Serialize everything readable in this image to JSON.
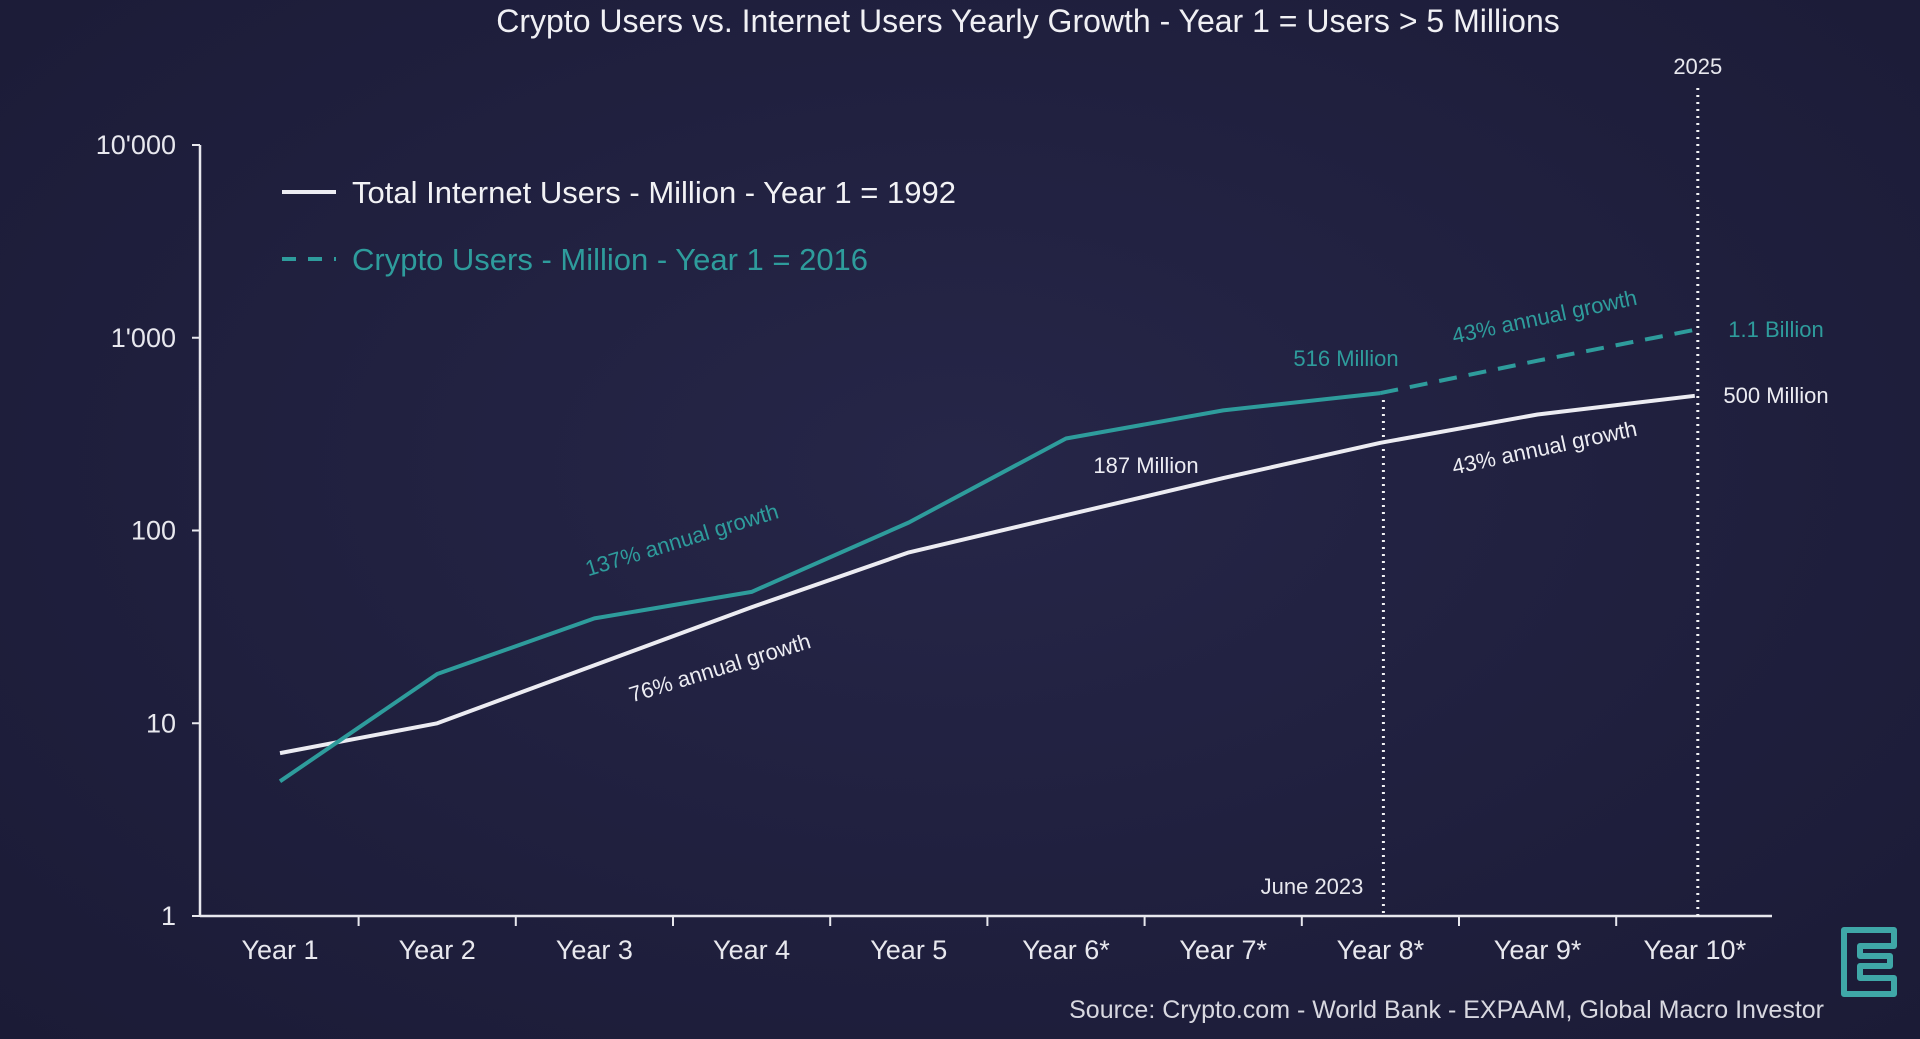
{
  "chart_data": {
    "type": "line",
    "title": "Crypto Users vs. Internet Users Yearly Growth - Year 1 = Users > 5 Millions",
    "y_scale": "log",
    "ylim": [
      1,
      10000
    ],
    "y_ticks": [
      "1",
      "10",
      "100",
      "1'000",
      "10'000"
    ],
    "categories": [
      "Year 1",
      "Year 2",
      "Year 3",
      "Year 4",
      "Year 5",
      "Year 6*",
      "Year 7*",
      "Year 8*",
      "Year 9*",
      "Year 10*"
    ],
    "series": [
      {
        "name": "Total Internet Users - Million - Year 1 = 1992",
        "color": "#ececf2",
        "style": "solid",
        "values": [
          7,
          10,
          20,
          40,
          77,
          120,
          187,
          285,
          400,
          500
        ]
      },
      {
        "name": "Crypto Users - Million - Year 1 = 2016",
        "color": "#2e9c9c",
        "style": "solid then dashed after Year 8*",
        "values": [
          5,
          18,
          35,
          48,
          110,
          300,
          420,
          516,
          760,
          1100
        ]
      }
    ],
    "vlines": [
      {
        "category_index": 7,
        "label": "June 2023",
        "label_position": "bottom"
      },
      {
        "category_index": 9,
        "label": "2025",
        "label_position": "top"
      }
    ],
    "annotations": [
      {
        "text": "137% annual growth",
        "color": "#2e9c9c",
        "near": "Year 3 - Year 4",
        "series": "crypto"
      },
      {
        "text": "76% annual growth",
        "color": "#ececf2",
        "near": "Year 3 - Year 4",
        "series": "internet"
      },
      {
        "text": "187 Million",
        "color": "#ececf2",
        "near": "Year 6* - Year 7*"
      },
      {
        "text": "516 Million",
        "color": "#2e9c9c",
        "near": "Year 8*"
      },
      {
        "text": "43% annual growth",
        "color": "#2e9c9c",
        "near": "Year 9*",
        "series": "crypto"
      },
      {
        "text": "43% annual growth",
        "color": "#ececf2",
        "near": "Year 9*",
        "series": "internet"
      },
      {
        "text": "1.1 Billion",
        "color": "#2e9c9c",
        "near": "Year 10*"
      },
      {
        "text": "500 Million",
        "color": "#ececf2",
        "near": "Year 10*"
      }
    ],
    "legend_position": "top-left",
    "grid": false,
    "source": "Source: Crypto.com - World Bank - EXPAAM, Global Macro Investor"
  },
  "logo": {
    "name": "brand-logo-icon",
    "color": "#3fa7a7"
  }
}
